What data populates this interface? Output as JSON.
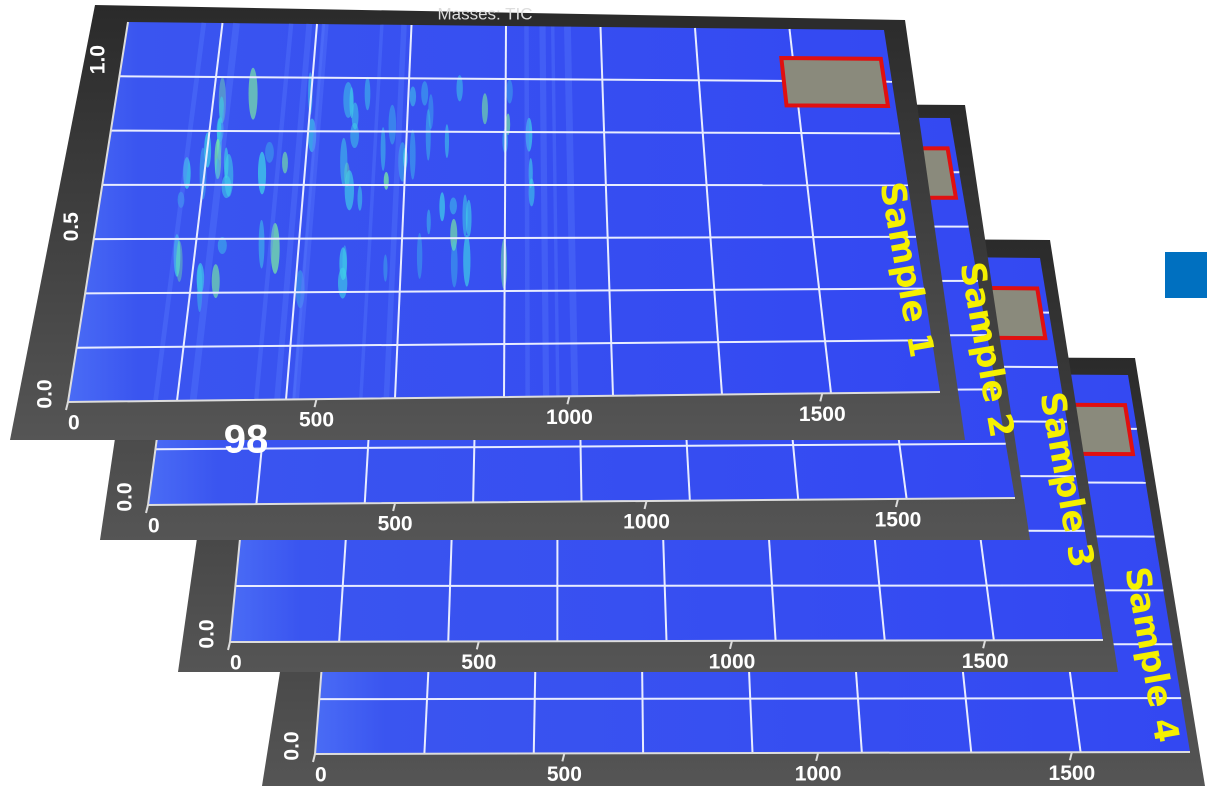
{
  "title": "Masses: TIC",
  "overlay_number": "98",
  "panels": [
    {
      "label": "Sample 1",
      "x_ticks": [
        "0",
        "500",
        "1000",
        "1500"
      ],
      "y_ticks": [
        "0.0",
        "0.5",
        "1.0"
      ]
    },
    {
      "label": "Sample 2",
      "x_ticks": [
        "0",
        "500",
        "1000",
        "1500"
      ],
      "y_ticks": [
        "0.0"
      ]
    },
    {
      "label": "Sample 3",
      "x_ticks": [
        "0",
        "500",
        "1000",
        "1500"
      ],
      "y_ticks": [
        "0.0"
      ]
    },
    {
      "label": "Sample 4",
      "x_ticks": [
        "0",
        "500",
        "1000",
        "1500"
      ],
      "y_ticks": [
        "0.0"
      ]
    }
  ]
}
